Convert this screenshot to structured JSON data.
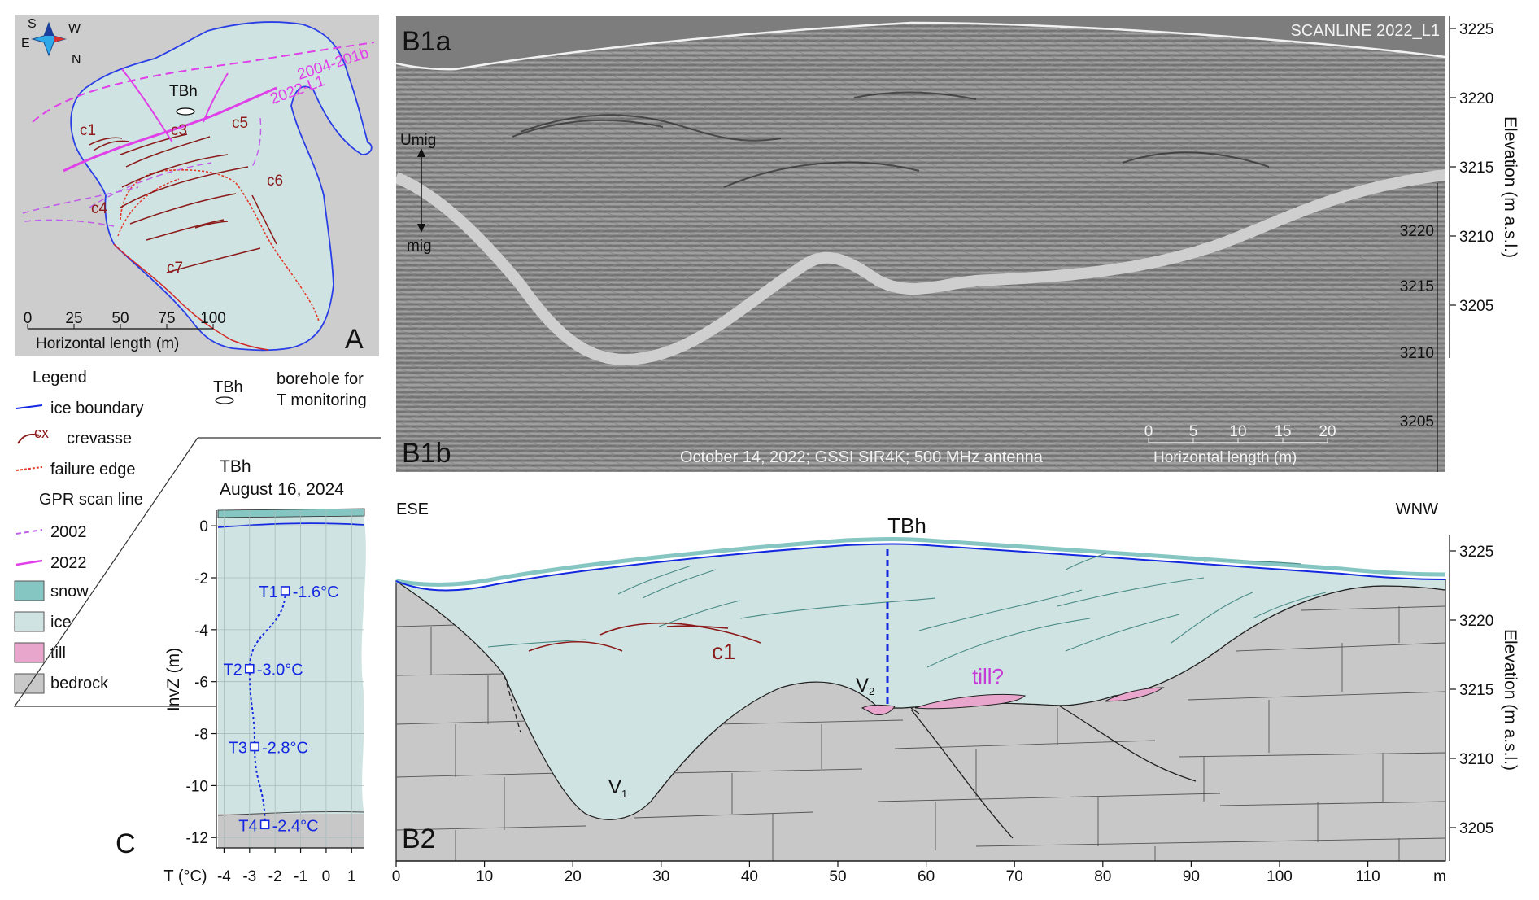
{
  "panel_labels": {
    "a": "A",
    "b1a": "B1a",
    "b1b": "B1b",
    "b2": "B2",
    "c": "C"
  },
  "map": {
    "compass": {
      "s": "S",
      "w": "W",
      "e": "E",
      "n": "N"
    },
    "borehole": "TBh",
    "scan_lines": {
      "l2022": "2022-L1",
      "l2004": "2004-201b"
    },
    "crevasses": [
      "c1",
      "c3",
      "c4",
      "c5",
      "c6",
      "c7"
    ],
    "scale_ticks": [
      "0",
      "25",
      "50",
      "75",
      "100"
    ],
    "scale_label": "Horizontal length (m)"
  },
  "legend": {
    "title": "Legend",
    "items": {
      "ice_boundary": "ice boundary",
      "crevasse_symbol": "cx",
      "crevasse": "crevasse",
      "failure_edge": "failure edge",
      "gpr_title": "GPR scan line",
      "gpr_2002": "2002",
      "gpr_2022": "2022",
      "snow": "snow",
      "ice": "ice",
      "till": "till",
      "bedrock": "bedrock"
    },
    "borehole_label": "TBh",
    "borehole_desc_1": "borehole for",
    "borehole_desc_2": "T monitoring"
  },
  "gpr": {
    "scanline_title": "SCANLINE 2022_L1",
    "umig": "Umig",
    "mig": "mig",
    "caption": "October 14, 2022; GSSI SIR4K; 500 MHz antenna",
    "scale_ticks": [
      "0",
      "5",
      "10",
      "15",
      "20"
    ],
    "scale_label": "Horizontal length (m)",
    "right_axis_ticks": [
      "3225",
      "3220",
      "3215",
      "3210",
      "3205"
    ],
    "right_axis_label": "Elevation (m a.s.l.)",
    "inner_axis_ticks": [
      "3220",
      "3215",
      "3210",
      "3205"
    ]
  },
  "profile": {
    "left_dir": "ESE",
    "right_dir": "WNW",
    "borehole": "TBh",
    "crevasse": "c1",
    "till": "till?",
    "v1_main": "V",
    "v1_sub": "1",
    "v2_main": "V",
    "v2_sub": "2",
    "x_ticks": [
      "0",
      "10",
      "20",
      "30",
      "40",
      "50",
      "60",
      "70",
      "80",
      "90",
      "100",
      "110"
    ],
    "x_unit": "m",
    "y_ticks": [
      "3225",
      "3220",
      "3215",
      "3210",
      "3205"
    ],
    "y_label": "Elevation (m a.s.l.)"
  },
  "temp": {
    "title": "TBh",
    "date": "August 16, 2024",
    "y_ticks": [
      "0",
      "-2",
      "-4",
      "-6",
      "-8",
      "-10",
      "-12"
    ],
    "y_label": "InvZ (m)",
    "x_ticks": [
      "-4",
      "-3",
      "-2",
      "-1",
      "0",
      "1"
    ],
    "x_label": "T (°C)",
    "sensors": [
      {
        "name": "T1",
        "label": "-1.6°C",
        "depth": -2.5,
        "temp": -1.6
      },
      {
        "name": "T2",
        "label": "-3.0°C",
        "depth": -5.5,
        "temp": -3.0
      },
      {
        "name": "T3",
        "label": "-2.8°C",
        "depth": -8.5,
        "temp": -2.8
      },
      {
        "name": "T4",
        "label": "-2.4°C",
        "depth": -11.5,
        "temp": -2.4
      }
    ]
  },
  "colors": {
    "ice": "#cfe4e2",
    "snow": "#86c6c2",
    "till": "#e9a6cd",
    "bedrock": "#c8c8c8",
    "crevasse": "#8b1a1a",
    "magenta": "#e040e8",
    "blue": "#1428e0"
  }
}
